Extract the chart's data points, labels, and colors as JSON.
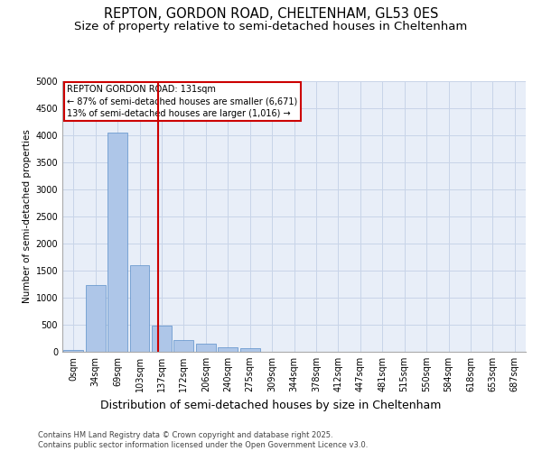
{
  "title1": "REPTON, GORDON ROAD, CHELTENHAM, GL53 0ES",
  "title2": "Size of property relative to semi-detached houses in Cheltenham",
  "xlabel": "Distribution of semi-detached houses by size in Cheltenham",
  "ylabel": "Number of semi-detached properties",
  "categories": [
    "0sqm",
    "34sqm",
    "69sqm",
    "103sqm",
    "137sqm",
    "172sqm",
    "206sqm",
    "240sqm",
    "275sqm",
    "309sqm",
    "344sqm",
    "378sqm",
    "412sqm",
    "447sqm",
    "481sqm",
    "515sqm",
    "550sqm",
    "584sqm",
    "618sqm",
    "653sqm",
    "687sqm"
  ],
  "values": [
    30,
    1230,
    4050,
    1600,
    490,
    210,
    145,
    90,
    65,
    0,
    0,
    0,
    0,
    0,
    0,
    0,
    0,
    0,
    0,
    0,
    0
  ],
  "bar_color": "#aec6e8",
  "bar_edge_color": "#5b8fc9",
  "grid_color": "#c8d4e8",
  "background_color": "#e8eef8",
  "property_line_x": 3.85,
  "property_label": "REPTON GORDON ROAD: 131sqm",
  "smaller_pct": "87% of semi-detached houses are smaller (6,671)",
  "larger_pct": "13% of semi-detached houses are larger (1,016)",
  "annotation_box_color": "#cc0000",
  "ylim": [
    0,
    5000
  ],
  "yticks": [
    0,
    500,
    1000,
    1500,
    2000,
    2500,
    3000,
    3500,
    4000,
    4500,
    5000
  ],
  "footer": "Contains HM Land Registry data © Crown copyright and database right 2025.\nContains public sector information licensed under the Open Government Licence v3.0.",
  "title1_fontsize": 10.5,
  "title2_fontsize": 9.5,
  "xlabel_fontsize": 9,
  "ylabel_fontsize": 7.5,
  "tick_fontsize": 7,
  "footer_fontsize": 6,
  "annot_fontsize": 7
}
